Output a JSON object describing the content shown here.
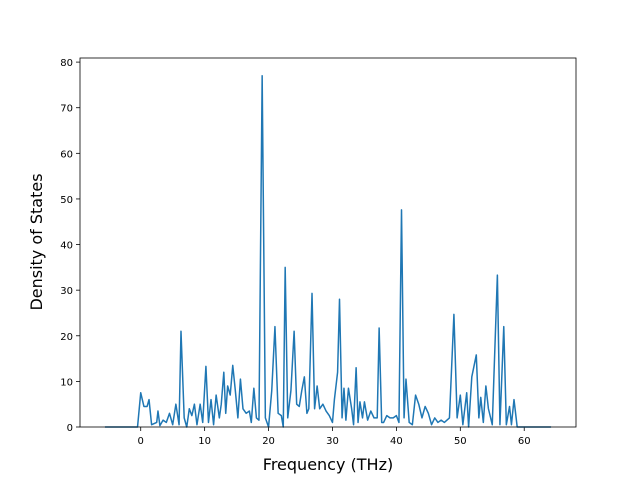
{
  "chart_data": {
    "type": "line",
    "xlabel": "Frequency (THz)",
    "ylabel": "Density of States",
    "color": "#1f77b4",
    "xlim": [
      -9.5,
      68.1
    ],
    "ylim": [
      0,
      80.9
    ],
    "xticks": [
      0,
      10,
      20,
      30,
      40,
      50,
      60
    ],
    "yticks": [
      0,
      10,
      20,
      30,
      40,
      50,
      60,
      70,
      80
    ],
    "x": [
      -5.6,
      -0.5,
      0,
      0.5,
      1,
      1.3,
      1.7,
      2.5,
      2.7,
      3,
      3.5,
      4,
      4.5,
      5,
      5.5,
      6,
      6.3,
      6.8,
      7.2,
      7.6,
      8,
      8.4,
      8.8,
      9.3,
      9.7,
      10.2,
      10.6,
      11,
      11.4,
      11.8,
      12.3,
      12.6,
      13,
      13.3,
      13.6,
      14,
      14.4,
      14.8,
      15.2,
      15.6,
      16,
      16.5,
      17,
      17.3,
      17.7,
      18.1,
      18.5,
      19,
      19.5,
      20,
      20.5,
      21,
      21.5,
      22,
      22.3,
      22.6,
      23,
      23.5,
      24,
      24.4,
      24.8,
      25.2,
      25.6,
      26,
      26.3,
      26.8,
      27.2,
      27.6,
      28,
      28.5,
      29,
      29.5,
      30,
      30.3,
      30.8,
      31.1,
      31.5,
      31.8,
      32.1,
      32.5,
      33,
      33.3,
      33.7,
      34,
      34.3,
      34.7,
      35,
      35.5,
      36,
      36.5,
      37,
      37.3,
      37.7,
      38,
      38.5,
      39,
      39.5,
      40,
      40.4,
      40.8,
      41.2,
      41.5,
      42,
      42.5,
      43,
      43.5,
      44,
      44.5,
      45,
      45.5,
      46,
      46.5,
      47,
      47.5,
      48.3,
      49,
      49.5,
      50,
      50.4,
      51,
      51.3,
      51.8,
      52.5,
      52.9,
      53.2,
      53.6,
      54,
      54.4,
      55,
      55.8,
      56.2,
      56.8,
      57.2,
      57.7,
      58,
      58.4,
      58.9,
      64.2
    ],
    "y": [
      0,
      0,
      7.5,
      4.5,
      4.5,
      6,
      0.5,
      1,
      3.5,
      0.3,
      1.5,
      1,
      3,
      0.5,
      5,
      0.5,
      21,
      2,
      0,
      4,
      2.5,
      5,
      0.5,
      5,
      1,
      13.3,
      1,
      6,
      0.5,
      7,
      2,
      5,
      12,
      3,
      9,
      7,
      13.5,
      8,
      2,
      10.5,
      4,
      3,
      3.5,
      1,
      8.5,
      2,
      1.5,
      77,
      2,
      0,
      8,
      22,
      3,
      2.5,
      0,
      35,
      2,
      8,
      21,
      5,
      4.5,
      8,
      11,
      3,
      4,
      29.3,
      4,
      9,
      4,
      5,
      3.5,
      2.5,
      1,
      6,
      12,
      28,
      2,
      8.5,
      1.5,
      8.5,
      4,
      0.5,
      13,
      1,
      5.5,
      2,
      5.5,
      1.5,
      3.5,
      2,
      2,
      21.7,
      1,
      1,
      2.5,
      2,
      2,
      2.5,
      1,
      47.6,
      2,
      10.5,
      1,
      0.5,
      7,
      5,
      2,
      4.5,
      3,
      0.5,
      2,
      1,
      1.5,
      1,
      2,
      24.7,
      2,
      7,
      0.5,
      7.5,
      0,
      11,
      15.8,
      2,
      6.5,
      1,
      9,
      4,
      0.5,
      33.3,
      0.5,
      22,
      0.5,
      4.5,
      0.5,
      6,
      0,
      0
    ]
  }
}
